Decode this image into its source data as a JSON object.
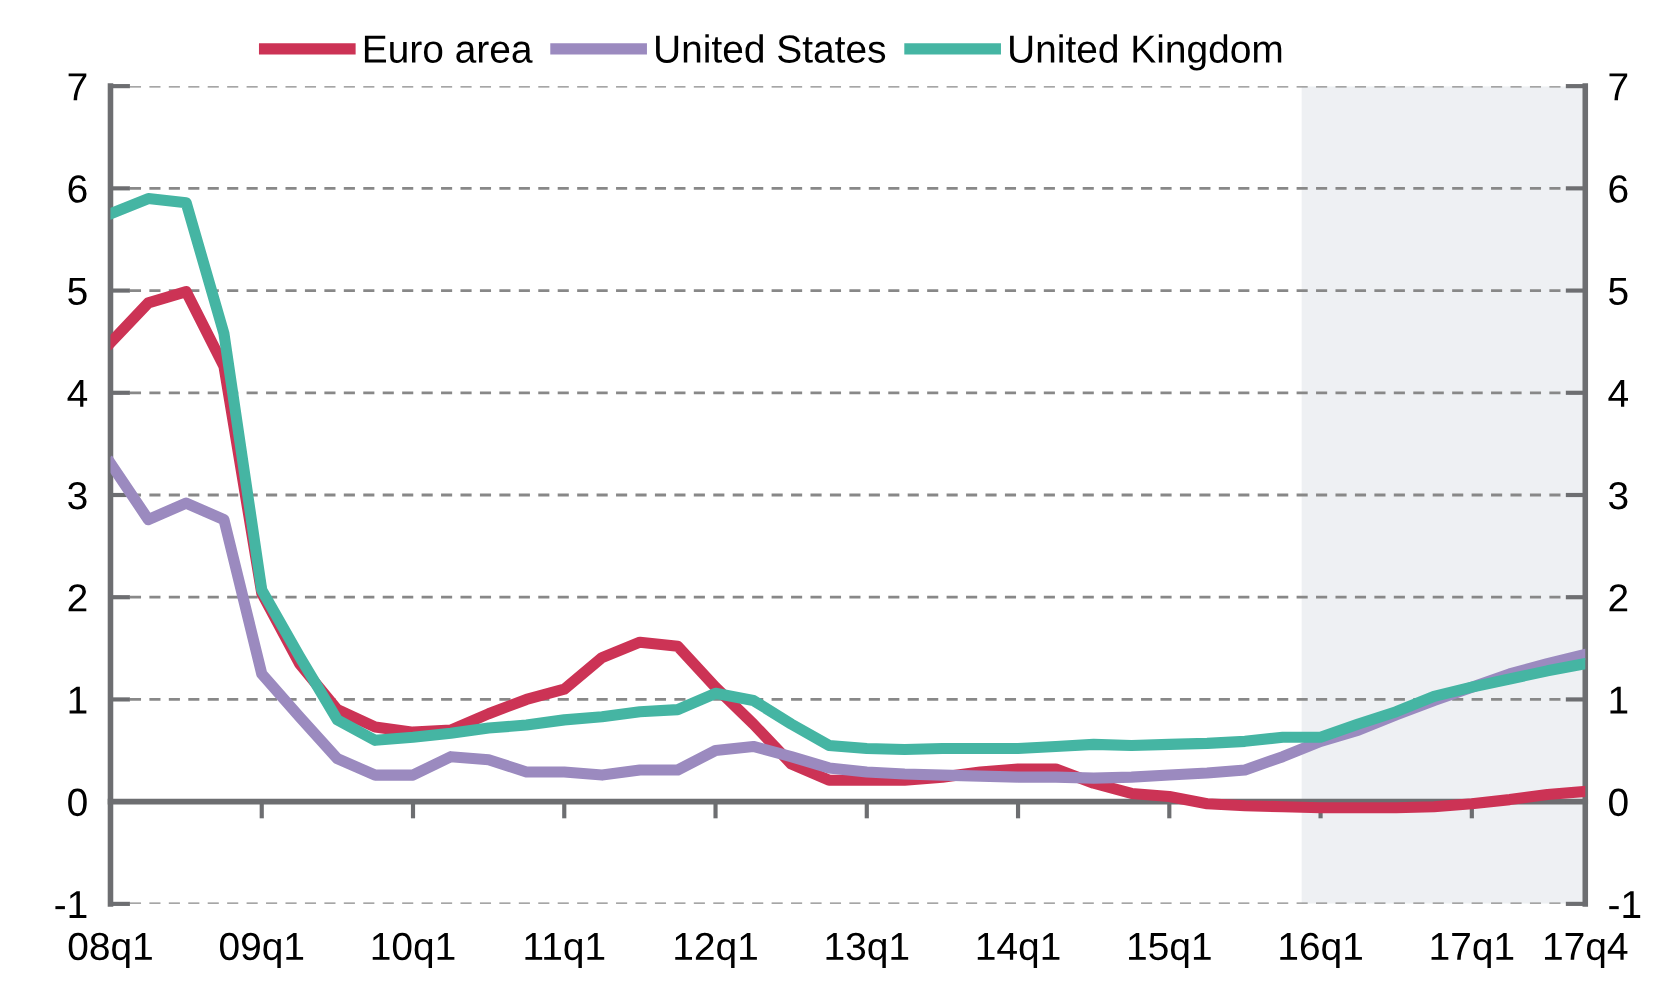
{
  "chart_data": {
    "type": "line",
    "categories": [
      "08q1",
      null,
      null,
      null,
      "09q1",
      null,
      null,
      null,
      "10q1",
      null,
      null,
      null,
      "11q1",
      null,
      null,
      null,
      "12q1",
      null,
      null,
      null,
      "13q1",
      null,
      null,
      null,
      "14q1",
      null,
      null,
      null,
      "15q1",
      null,
      null,
      null,
      "16q1",
      null,
      null,
      null,
      "17q1",
      null,
      null,
      "17q4"
    ],
    "series": [
      {
        "name": "Euro area",
        "color": "#cc3355",
        "values": [
          4.49,
          4.88,
          4.99,
          4.26,
          2.04,
          1.35,
          0.9,
          0.73,
          0.68,
          0.7,
          0.86,
          1.0,
          1.1,
          1.41,
          1.56,
          1.52,
          1.12,
          0.76,
          0.37,
          0.21,
          0.21,
          0.21,
          0.24,
          0.29,
          0.32,
          0.32,
          0.18,
          0.08,
          0.05,
          -0.02,
          -0.04,
          -0.05,
          -0.06,
          -0.06,
          -0.06,
          -0.05,
          -0.02,
          0.02,
          0.07,
          0.1
        ]
      },
      {
        "name": "United States",
        "color": "#9b8abf",
        "values": [
          3.31,
          2.76,
          2.92,
          2.76,
          1.25,
          0.83,
          0.42,
          0.26,
          0.26,
          0.44,
          0.41,
          0.29,
          0.29,
          0.26,
          0.31,
          0.31,
          0.5,
          0.54,
          0.44,
          0.33,
          0.29,
          0.27,
          0.26,
          0.25,
          0.24,
          0.24,
          0.23,
          0.24,
          0.26,
          0.28,
          0.31,
          0.44,
          0.59,
          0.7,
          0.85,
          0.99,
          1.12,
          1.25,
          1.35,
          1.44
        ]
      },
      {
        "name": "United Kingdom",
        "color": "#45b5a3",
        "values": [
          5.75,
          5.9,
          5.86,
          4.58,
          2.07,
          1.42,
          0.8,
          0.6,
          0.63,
          0.67,
          0.72,
          0.75,
          0.8,
          0.83,
          0.88,
          0.9,
          1.06,
          0.99,
          0.76,
          0.55,
          0.52,
          0.51,
          0.52,
          0.52,
          0.52,
          0.54,
          0.56,
          0.55,
          0.56,
          0.57,
          0.59,
          0.63,
          0.63,
          0.76,
          0.88,
          1.03,
          1.12,
          1.2,
          1.28,
          1.35
        ]
      }
    ],
    "ylim": [
      -1,
      7
    ],
    "yticks": [
      -1,
      0,
      1,
      2,
      3,
      4,
      5,
      6,
      7
    ],
    "y2lim": [
      -1,
      7
    ],
    "y2ticks": [
      -1,
      0,
      1,
      2,
      3,
      4,
      5,
      6,
      7
    ],
    "bands": [
      {
        "axis": "x",
        "from": "16q1",
        "to": "17q4",
        "color": "#eef0f3"
      }
    ],
    "grid": "y",
    "legend": "top",
    "line_style": "solid",
    "marker": "none"
  }
}
